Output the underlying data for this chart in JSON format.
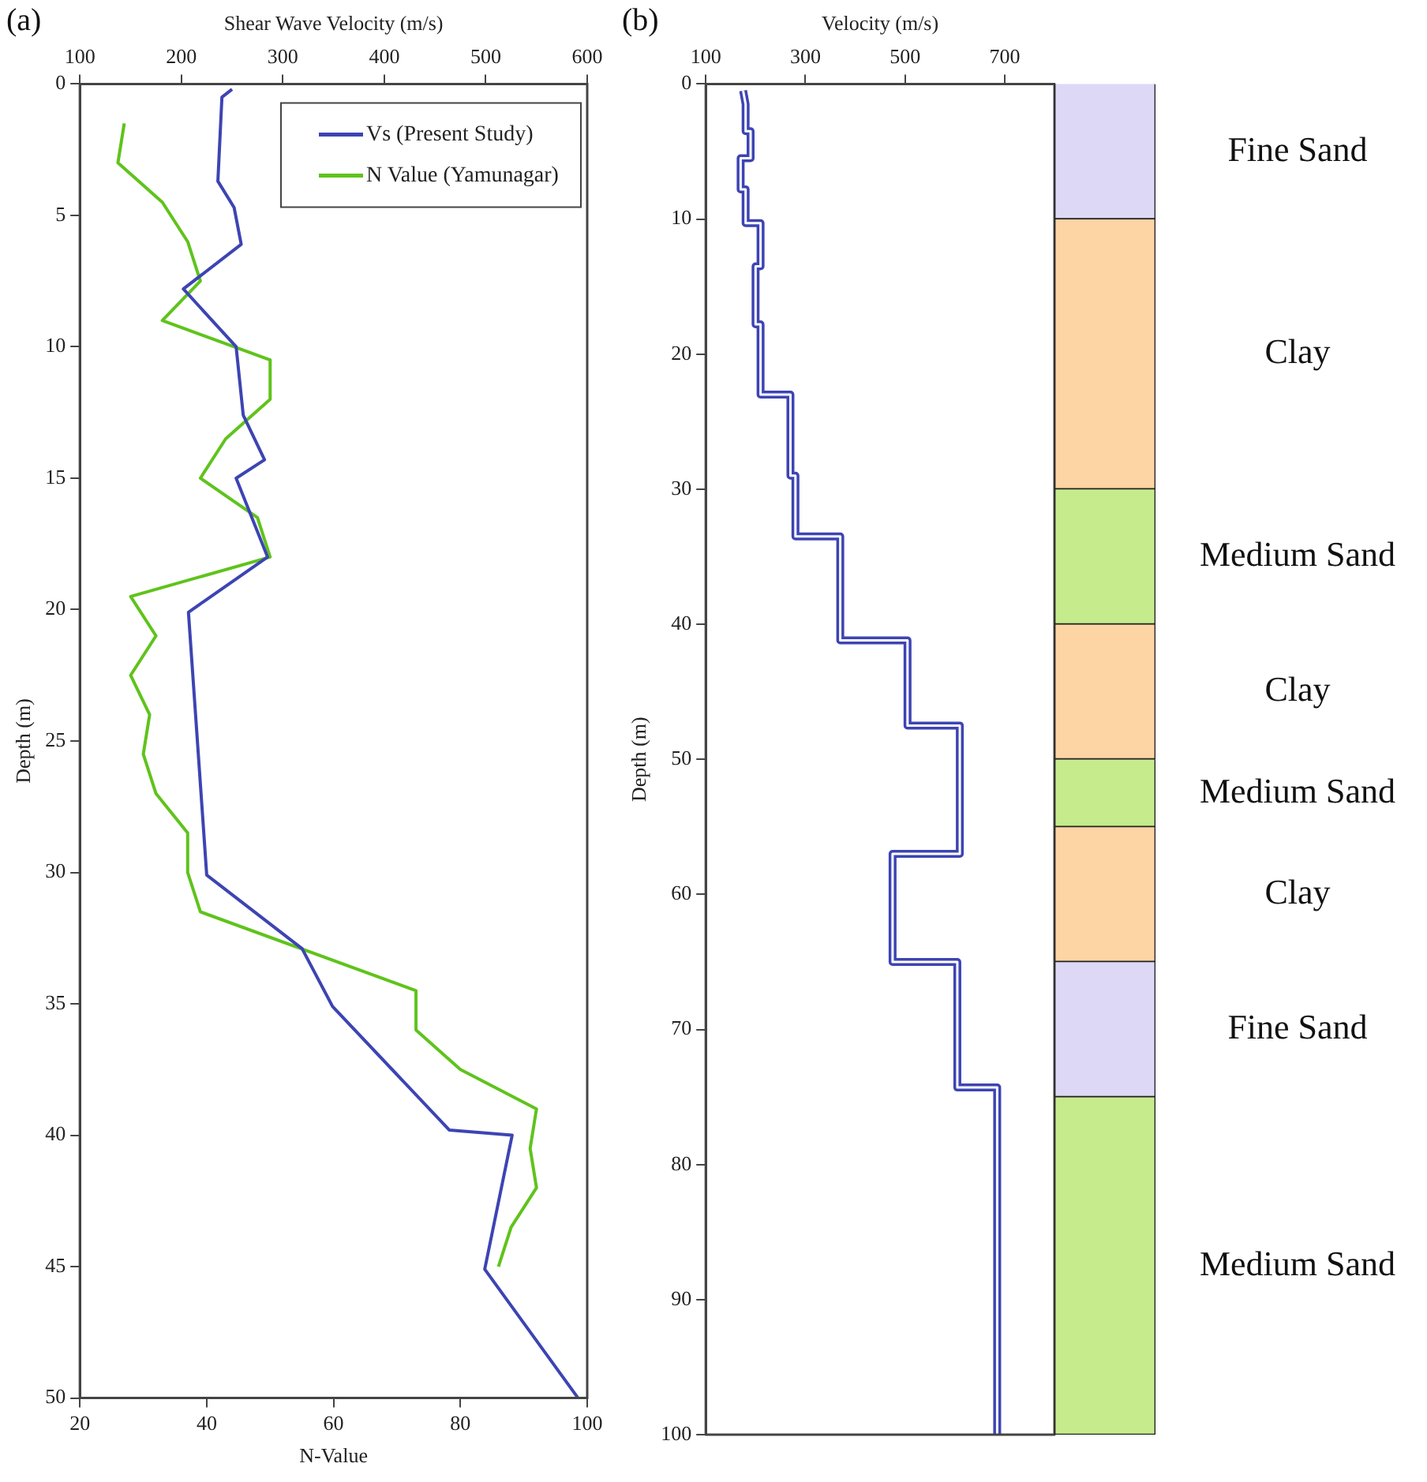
{
  "chart_data": [
    {
      "type": "line",
      "title": "(a)",
      "xlabel": "N-Value",
      "x2label": "Shear Wave Velocity (m/s)",
      "ylabel": "Depth (m)",
      "xlim": [
        20,
        100
      ],
      "xticks": [
        20,
        40,
        60,
        80,
        100
      ],
      "x2lim": [
        100,
        600
      ],
      "x2ticks": [
        100,
        200,
        300,
        400,
        500,
        600
      ],
      "ylim": [
        50,
        0
      ],
      "yticks": [
        0,
        5,
        10,
        15,
        20,
        25,
        30,
        35,
        40,
        45,
        50
      ],
      "legend": "top right",
      "series": [
        {
          "name": "Vs (Present Study)",
          "color": "#3d44b3",
          "axis": "x2",
          "x": [
            250,
            240,
            236,
            252,
            259,
            202,
            254,
            261,
            282,
            254,
            285,
            207,
            225,
            319,
            349,
            464,
            526,
            499,
            591
          ],
          "values": [
            0.2,
            0.5,
            3.7,
            4.7,
            6.1,
            7.8,
            10,
            12.6,
            14.3,
            15,
            18,
            20.1,
            30.1,
            32.9,
            35.1,
            39.8,
            40,
            45.1,
            50
          ]
        },
        {
          "name": "N Value (Yamunagar)",
          "color": "#5fc31c",
          "x": [
            27,
            26,
            33,
            37,
            39,
            33,
            50,
            50,
            43,
            39,
            48,
            50,
            28,
            32,
            28,
            31,
            30,
            32,
            37,
            37,
            39,
            73,
            73,
            80,
            92,
            91,
            92,
            88,
            86
          ],
          "values": [
            1.5,
            3,
            4.5,
            6,
            7.5,
            9,
            10.5,
            12,
            13.5,
            15,
            16.5,
            18,
            19.5,
            21,
            22.5,
            24,
            25.5,
            27,
            28.5,
            30,
            31.5,
            34.5,
            36,
            37.5,
            39,
            40.5,
            42,
            43.5,
            45
          ]
        }
      ]
    },
    {
      "type": "line",
      "title": "(b)",
      "xlabel": "Velocity (m/s)",
      "ylabel": "Depth (m)",
      "xlim": [
        100,
        800
      ],
      "xticks": [
        100,
        300,
        500,
        700
      ],
      "ylim": [
        100,
        0
      ],
      "yticks": [
        0,
        10,
        20,
        30,
        40,
        50,
        60,
        70,
        80,
        90,
        100
      ],
      "series": [
        {
          "color": "#3d44b3",
          "x": [
            175,
            180,
            180,
            190,
            190,
            170,
            170,
            180,
            180,
            210,
            210,
            200,
            200,
            210,
            210,
            270,
            270,
            280,
            280,
            370,
            370,
            505,
            505,
            610,
            610,
            475,
            475,
            605,
            605,
            685,
            685
          ],
          "values": [
            0.5,
            1.5,
            3.5,
            3.5,
            5.5,
            5.5,
            7.8,
            7.8,
            10.3,
            10.3,
            13.5,
            13.5,
            17.8,
            17.8,
            23,
            23,
            29,
            29,
            33.5,
            33.5,
            41.2,
            41.2,
            47.5,
            47.5,
            57,
            57,
            65,
            65,
            74.3,
            74.3,
            100
          ]
        }
      ]
    },
    {
      "type": "bar",
      "stacked": true,
      "categories": [
        null
      ],
      "ylim": [
        100,
        0
      ],
      "tick_labels": false,
      "series": [
        {
          "name": "Fine Sand",
          "color": "#dcd8f6",
          "values": [
            10
          ]
        },
        {
          "name": "Clay",
          "color": "#fdd4a3",
          "values": [
            20
          ]
        },
        {
          "name": "Medium Sand",
          "color": "#c6eb8c",
          "values": [
            10
          ]
        },
        {
          "name": "Clay",
          "color": "#fdd4a3",
          "values": [
            10
          ]
        },
        {
          "name": "Medium Sand",
          "color": "#c6eb8c",
          "values": [
            5
          ]
        },
        {
          "name": "Clay",
          "color": "#fdd4a3",
          "values": [
            10
          ]
        },
        {
          "name": "Fine Sand",
          "color": "#dcd8f6",
          "values": [
            10
          ]
        },
        {
          "name": "Medium Sand",
          "color": "#c6eb8c",
          "values": [
            25
          ]
        }
      ]
    }
  ]
}
